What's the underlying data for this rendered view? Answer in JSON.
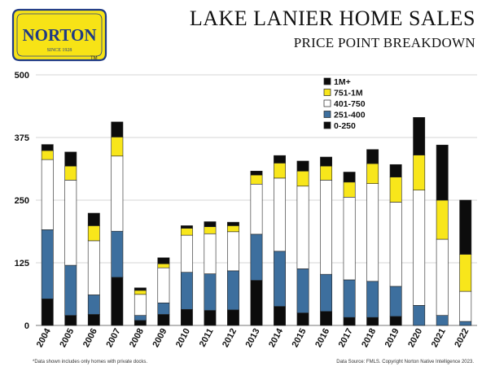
{
  "logo": {
    "name": "NORTON",
    "tagline": "SINCE 1928",
    "tm": "TM",
    "colors": {
      "plate": "#f7e316",
      "border": "#1f3a85",
      "text": "#1f3a85"
    }
  },
  "header": {
    "title": "LAKE LANIER HOME SALES",
    "subtitle": "PRICE POINT BREAKDOWN"
  },
  "footer": {
    "footnote": "*Data shown includes only homes with private docks.",
    "source": "Data Source: FMLS. Copyright Norton Native Intelligence 2023."
  },
  "chart_data": {
    "type": "bar",
    "stacked": true,
    "title": "LAKE LANIER HOME SALES - PRICE POINT BREAKDOWN",
    "xlabel": "",
    "ylabel": "",
    "ylim": [
      0,
      500
    ],
    "yticks": [
      "0",
      "125",
      "250",
      "375",
      "500"
    ],
    "categories": [
      "2004",
      "2005",
      "2006",
      "2007",
      "2008",
      "2009",
      "2010",
      "2011",
      "2012",
      "2013",
      "2014",
      "2015",
      "2016",
      "2017",
      "2018",
      "2019",
      "2020",
      "2021",
      "2022"
    ],
    "legend_position": "top-right",
    "series": [
      {
        "name": "0-250",
        "color": "#0c0c0c",
        "values": [
          53,
          20,
          22,
          96,
          10,
          22,
          32,
          30,
          31,
          90,
          38,
          25,
          28,
          16,
          16,
          18,
          0,
          0,
          0
        ]
      },
      {
        "name": "251-400",
        "color": "#3d6f9e",
        "values": [
          138,
          100,
          39,
          92,
          10,
          23,
          74,
          73,
          78,
          92,
          110,
          88,
          74,
          75,
          72,
          60,
          40,
          20,
          8
        ]
      },
      {
        "name": "401-750",
        "color": "#ffffff",
        "values": [
          140,
          170,
          108,
          150,
          42,
          70,
          74,
          80,
          78,
          100,
          146,
          165,
          188,
          165,
          195,
          168,
          230,
          152,
          60
        ]
      },
      {
        "name": "751-1M",
        "color": "#f8e61b",
        "values": [
          18,
          28,
          30,
          38,
          8,
          8,
          14,
          14,
          12,
          18,
          30,
          30,
          28,
          30,
          40,
          50,
          70,
          78,
          74
        ]
      },
      {
        "name": "1M+",
        "color": "#0c0c0c",
        "values": [
          12,
          28,
          25,
          30,
          5,
          12,
          5,
          10,
          7,
          8,
          15,
          20,
          18,
          20,
          28,
          25,
          75,
          110,
          108
        ]
      }
    ],
    "legend_order": [
      "1M+",
      "751-1M",
      "401-750",
      "251-400",
      "0-250"
    ]
  }
}
